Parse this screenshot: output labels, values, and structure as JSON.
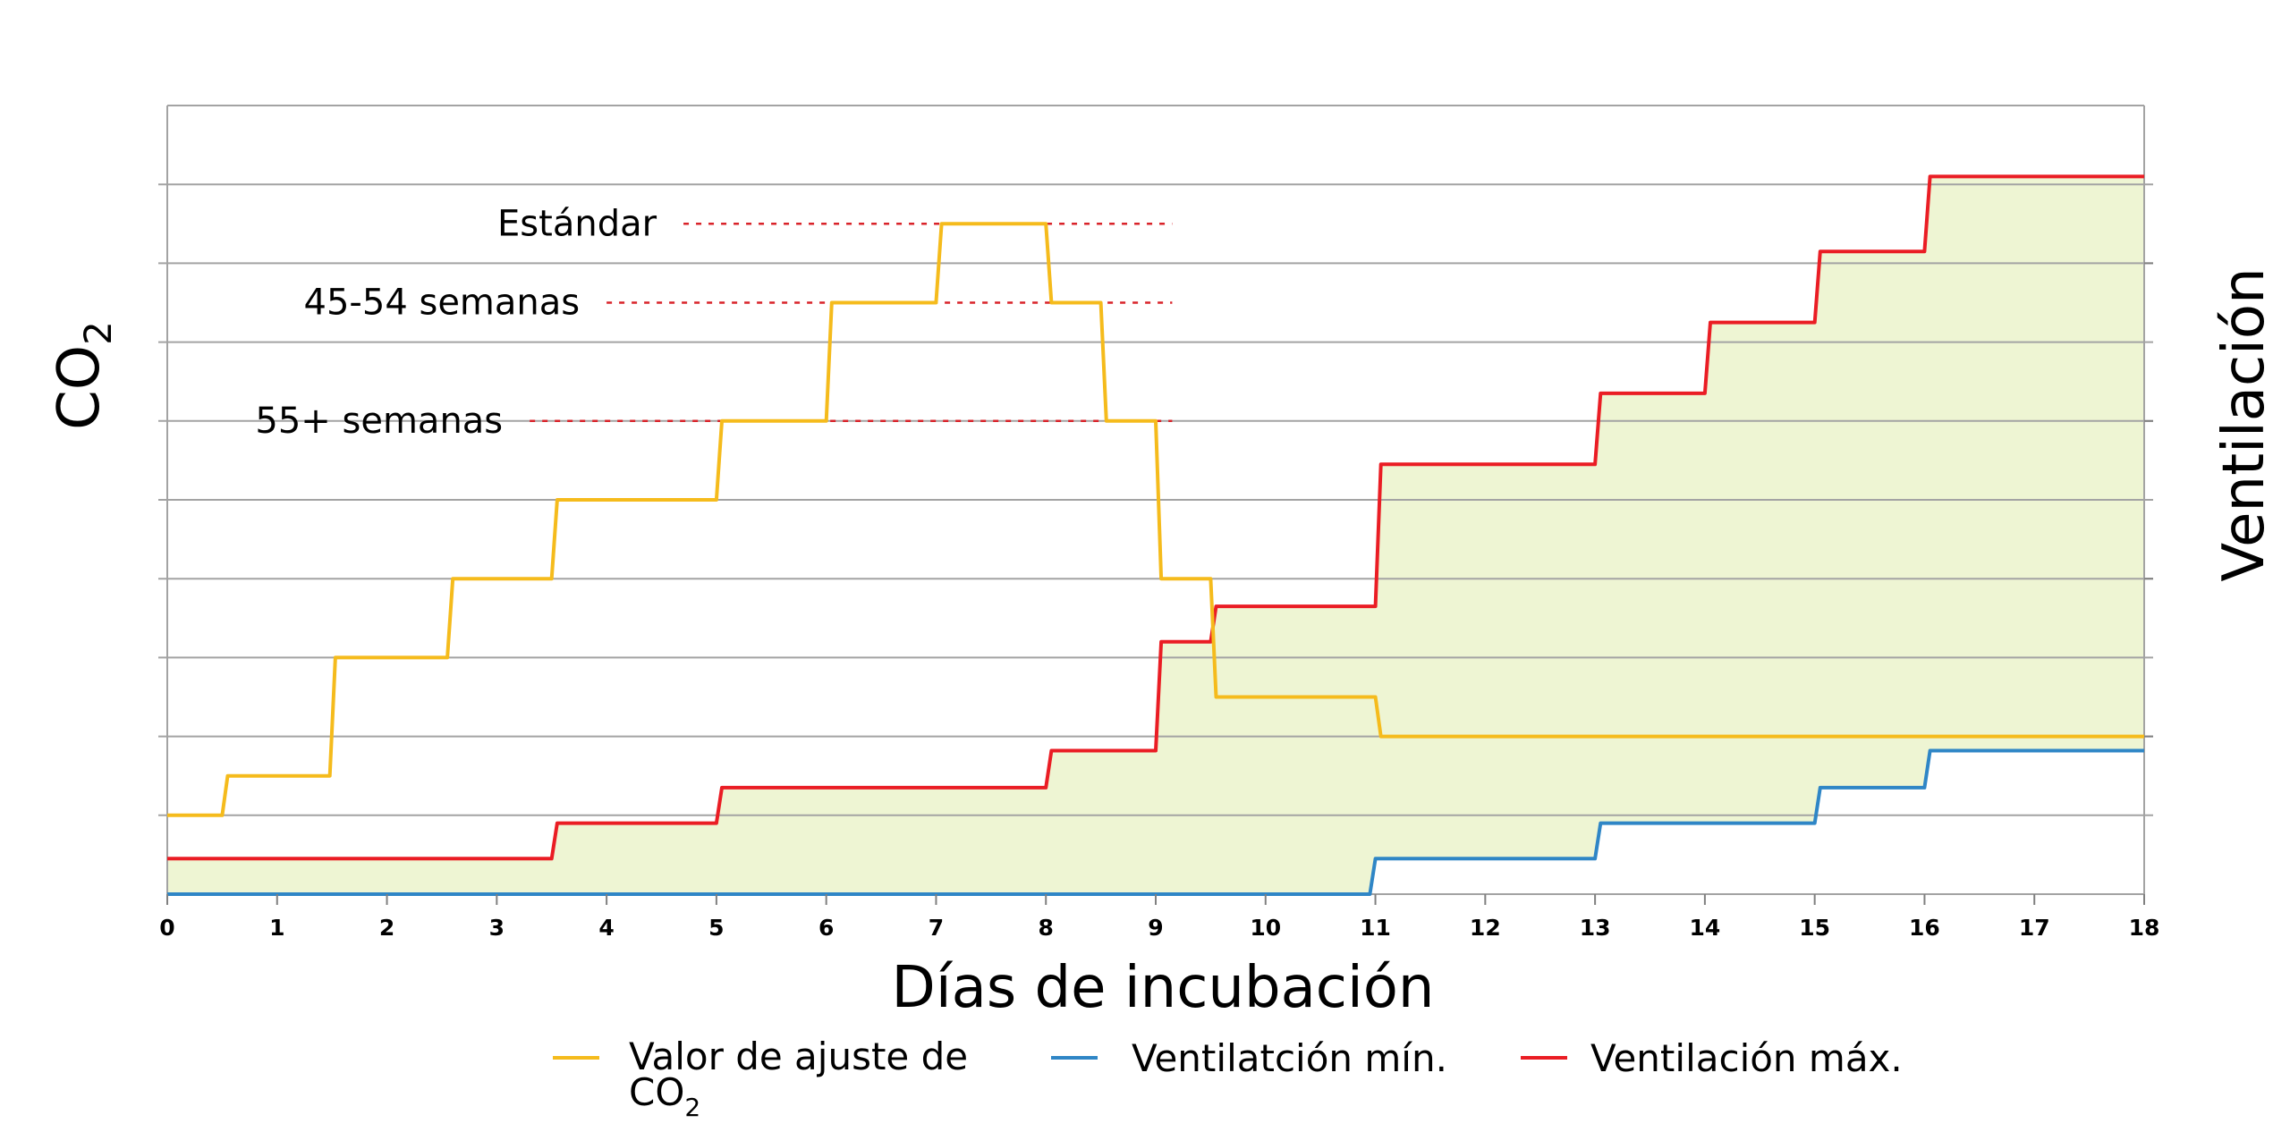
{
  "chart_data": {
    "type": "line",
    "line_shape": "step",
    "x_label": "Días de incubación",
    "y_label_left": {
      "base": "CO",
      "subscript": "2"
    },
    "y_label_right": "Ventilación",
    "xlim": [
      0,
      18
    ],
    "ylim": [
      0,
      10
    ],
    "x_ticks": [
      "0",
      "1",
      "2",
      "3",
      "4",
      "5",
      "6",
      "7",
      "8",
      "9",
      "10",
      "11",
      "12",
      "13",
      "14",
      "15",
      "16",
      "17",
      "18"
    ],
    "y_ticks_shown": false,
    "grid": "horizontal",
    "legend_position": "bottom",
    "colors": {
      "co2_setpoint": "#f5bb1c",
      "min_vent": "#2f86c6",
      "max_vent": "#ea1d24",
      "fill": "#eef5d3",
      "grid": "#a3a3a3",
      "annotation_dash": "#d9232a"
    },
    "annotations": [
      {
        "text": "Estándar",
        "y": 8.5,
        "x_from": 4.7,
        "x_to": 9.15
      },
      {
        "text": "45-54 semanas",
        "y": 7.5,
        "x_from": 4.0,
        "x_to": 9.15
      },
      {
        "text": "55+ semanas",
        "y": 6.0,
        "x_from": 3.3,
        "x_to": 9.15
      }
    ],
    "series": [
      {
        "key": "co2_setpoint",
        "name": "Valor de ajuste de CO2",
        "name_lines": [
          "Valor de ajuste de",
          "CO"
        ],
        "name_subscript": "2",
        "points": [
          [
            0,
            1.0
          ],
          [
            0.5,
            1.0
          ],
          [
            0.55,
            1.5
          ],
          [
            1.48,
            1.5
          ],
          [
            1.53,
            3.0
          ],
          [
            2.55,
            3.0
          ],
          [
            2.6,
            4.0
          ],
          [
            3.5,
            4.0
          ],
          [
            3.55,
            5.0
          ],
          [
            5.0,
            5.0
          ],
          [
            5.05,
            6.0
          ],
          [
            6.0,
            6.0
          ],
          [
            6.05,
            7.5
          ],
          [
            7.0,
            7.5
          ],
          [
            7.05,
            8.5
          ],
          [
            8.0,
            8.5
          ],
          [
            8.05,
            7.5
          ],
          [
            8.5,
            7.5
          ],
          [
            8.55,
            6.0
          ],
          [
            9.0,
            6.0
          ],
          [
            9.05,
            4.0
          ],
          [
            9.5,
            4.0
          ],
          [
            9.55,
            2.5
          ],
          [
            11.0,
            2.5
          ],
          [
            11.05,
            2.0
          ],
          [
            18.0,
            2.0
          ]
        ]
      },
      {
        "key": "min_vent",
        "name": "Ventilatción mín.",
        "points": [
          [
            0,
            0.0
          ],
          [
            10.95,
            0.0
          ],
          [
            11.0,
            0.45
          ],
          [
            13.0,
            0.45
          ],
          [
            13.05,
            0.9
          ],
          [
            15.0,
            0.9
          ],
          [
            15.05,
            1.35
          ],
          [
            16.0,
            1.35
          ],
          [
            16.05,
            1.82
          ],
          [
            18.0,
            1.82
          ]
        ]
      },
      {
        "key": "max_vent",
        "name": "Ventilación máx.",
        "points": [
          [
            0,
            0.45
          ],
          [
            3.5,
            0.45
          ],
          [
            3.55,
            0.9
          ],
          [
            5.0,
            0.9
          ],
          [
            5.05,
            1.35
          ],
          [
            8.0,
            1.35
          ],
          [
            8.05,
            1.82
          ],
          [
            9.0,
            1.82
          ],
          [
            9.05,
            3.2
          ],
          [
            9.5,
            3.2
          ],
          [
            9.55,
            3.65
          ],
          [
            11.0,
            3.65
          ],
          [
            11.05,
            5.45
          ],
          [
            13.0,
            5.45
          ],
          [
            13.05,
            6.35
          ],
          [
            14.0,
            6.35
          ],
          [
            14.05,
            7.25
          ],
          [
            15.0,
            7.25
          ],
          [
            15.05,
            8.15
          ],
          [
            16.0,
            8.15
          ],
          [
            16.05,
            9.1
          ],
          [
            18.0,
            9.1
          ]
        ]
      }
    ]
  }
}
